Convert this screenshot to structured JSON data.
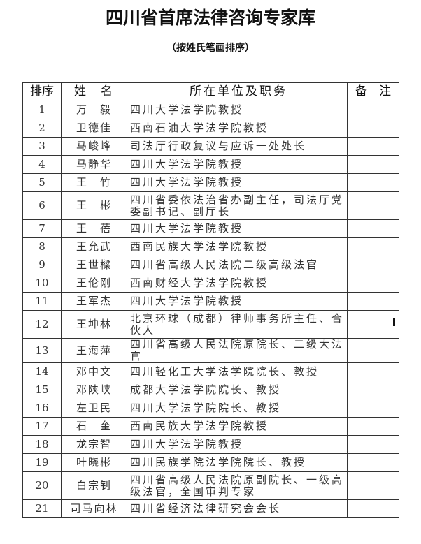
{
  "title": "四川省首席法律咨询专家库",
  "subtitle": "（按姓氏笔画排序）",
  "table": {
    "headers": [
      "排序",
      "姓　名",
      "所在单位及职务",
      "备　注"
    ],
    "rows": [
      {
        "no": "1",
        "name": "万　毅",
        "position": "四川大学法学院教授",
        "note": ""
      },
      {
        "no": "2",
        "name": "卫德佳",
        "position": "西南石油大学法学院教授",
        "note": ""
      },
      {
        "no": "3",
        "name": "马峻峰",
        "position": "司法厅行政复议与应诉一处处长",
        "note": ""
      },
      {
        "no": "4",
        "name": "马静华",
        "position": "四川大学法学院教授",
        "note": ""
      },
      {
        "no": "5",
        "name": "王　竹",
        "position": "四川大学法学院教授",
        "note": ""
      },
      {
        "no": "6",
        "name": "王　彬",
        "position": "四川省委依法治省办副主任，司法厅党委副书记、副厅长",
        "note": ""
      },
      {
        "no": "7",
        "name": "王　蓓",
        "position": "四川大学法学院教授",
        "note": ""
      },
      {
        "no": "8",
        "name": "王允武",
        "position": "西南民族大学法学院教授",
        "note": ""
      },
      {
        "no": "9",
        "name": "王世樑",
        "position": "四川省高级人民法院二级高级法官",
        "note": ""
      },
      {
        "no": "10",
        "name": "王伦刚",
        "position": "西南财经大学法学院教授",
        "note": ""
      },
      {
        "no": "11",
        "name": "王军杰",
        "position": "四川大学法学院教授",
        "note": ""
      },
      {
        "no": "12",
        "name": "王坤林",
        "position": "北京环球（成都）律师事务所主任、合伙人",
        "note": ""
      },
      {
        "no": "13",
        "name": "王海萍",
        "position": "四川省高级人民法院原院长、二级大法官",
        "note": ""
      },
      {
        "no": "14",
        "name": "邓中文",
        "position": "四川轻化工大学法学院院长、教授",
        "note": ""
      },
      {
        "no": "15",
        "name": "邓陕峡",
        "position": "成都大学法学院院长、教授",
        "note": ""
      },
      {
        "no": "16",
        "name": "左卫民",
        "position": "四川大学法学院院长、教授",
        "note": ""
      },
      {
        "no": "17",
        "name": "石　奎",
        "position": "西南民族大学法学院教授",
        "note": ""
      },
      {
        "no": "18",
        "name": "龙宗智",
        "position": "四川大学法学院教授",
        "note": ""
      },
      {
        "no": "19",
        "name": "叶晓彬",
        "position": "四川民族学院法学院院长、教授",
        "note": ""
      },
      {
        "no": "20",
        "name": "白宗钊",
        "position": "四川省高级人民法院原副院长、一级高级法官，全国审判专家",
        "note": ""
      },
      {
        "no": "21",
        "name": "司马向林",
        "position": "四川省经济法律研究会会长",
        "note": ""
      }
    ]
  }
}
